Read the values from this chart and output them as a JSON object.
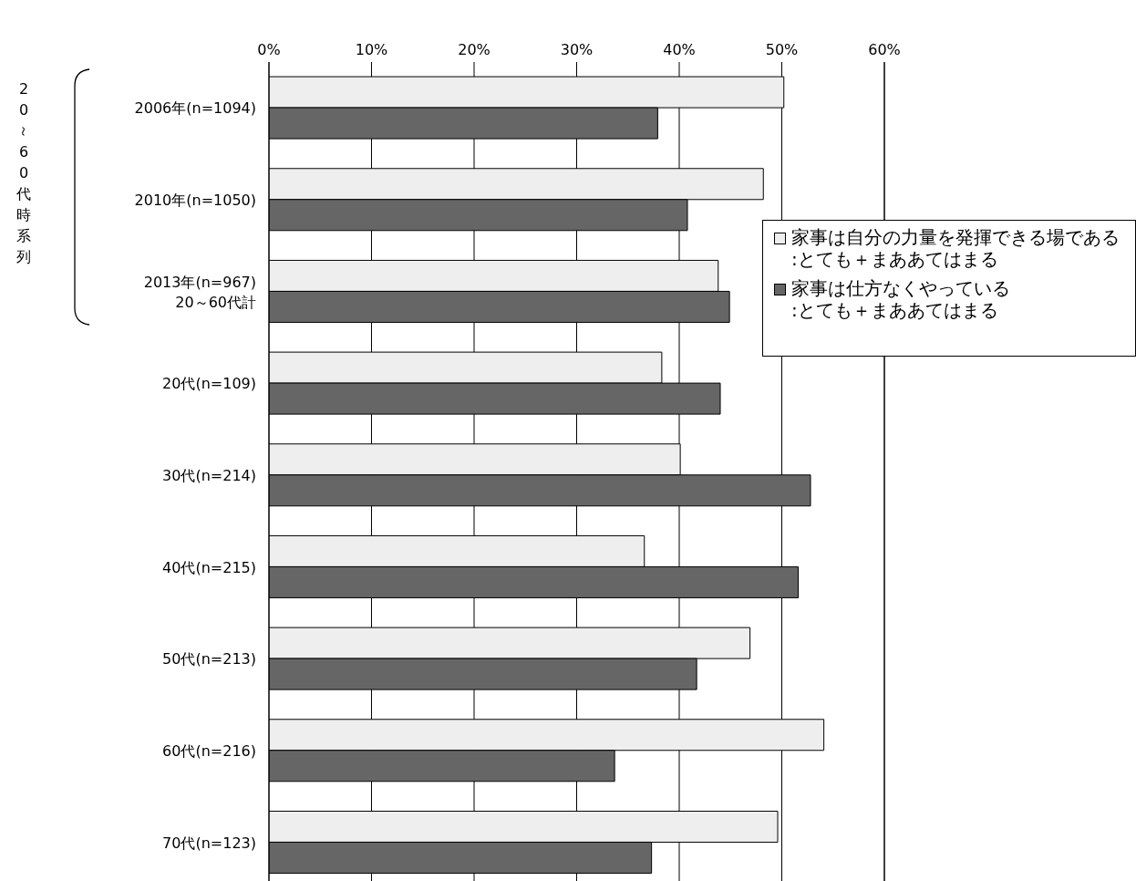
{
  "chart_data": {
    "type": "bar",
    "orientation": "horizontal",
    "categories": [
      "2006年(n=1094)",
      "2010年(n=1050)",
      "2013年(n=967)\n20～60代計",
      "20代(n=109)",
      "30代(n=214)",
      "40代(n=215)",
      "50代(n=213)",
      "60代(n=216)",
      "70代(n=123)"
    ],
    "series": [
      {
        "name": "家事は自分の力量を発揮できる場である\n:とても＋まああてはまる",
        "color": "#eeeeee",
        "values": [
          50.2,
          48.2,
          43.8,
          38.3,
          40.1,
          36.6,
          46.9,
          54.1,
          49.6
        ]
      },
      {
        "name": "家事は仕方なくやっている\n:とても＋まああてはまる",
        "color": "#666666",
        "values": [
          37.9,
          40.8,
          44.9,
          44.0,
          52.8,
          51.6,
          41.7,
          33.7,
          37.3
        ]
      }
    ],
    "xlim": [
      0,
      60
    ],
    "xticks": [
      {
        "value": 0,
        "label": "0%"
      },
      {
        "value": 10,
        "label": "10%"
      },
      {
        "value": 20,
        "label": "20%"
      },
      {
        "value": 30,
        "label": "30%"
      },
      {
        "value": 40,
        "label": "40%"
      },
      {
        "value": 50,
        "label": "50%"
      },
      {
        "value": 60,
        "label": "60%"
      }
    ],
    "grid": "x",
    "legend": "right",
    "annotations": [
      "20～60代時系列"
    ]
  }
}
